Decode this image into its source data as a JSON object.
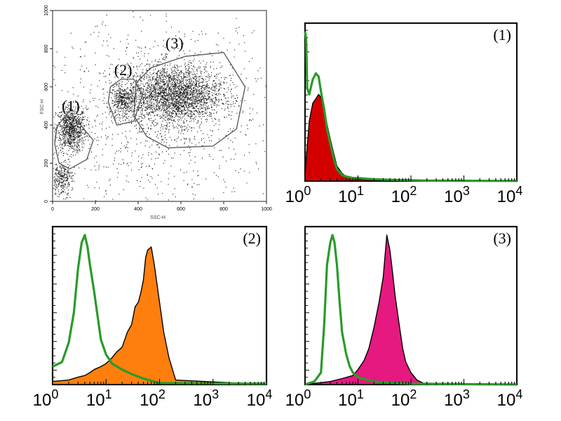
{
  "chart_data": [
    {
      "type": "scatter",
      "xlabel": "SSC-H",
      "ylabel": "FSC-H",
      "xlim": [
        0,
        1000
      ],
      "ylim": [
        0,
        1000
      ],
      "x_ticks": [
        "0",
        "200",
        "400",
        "600",
        "800",
        "1000"
      ],
      "y_ticks": [
        "0",
        "200",
        "400",
        "600",
        "800",
        "1000"
      ],
      "gates": [
        {
          "label": "(1)",
          "center": [
            85,
            370
          ],
          "polygon": [
            [
              10,
              300
            ],
            [
              20,
              390
            ],
            [
              60,
              450
            ],
            [
              110,
              430
            ],
            [
              190,
              320
            ],
            [
              160,
              220
            ],
            [
              80,
              170
            ],
            [
              30,
              200
            ]
          ]
        },
        {
          "label": "(2)",
          "center": [
            330,
            530
          ],
          "polygon": [
            [
              260,
              520
            ],
            [
              270,
              600
            ],
            [
              320,
              640
            ],
            [
              380,
              640
            ],
            [
              420,
              560
            ],
            [
              380,
              420
            ],
            [
              300,
              400
            ]
          ]
        },
        {
          "label": "(3)",
          "center": [
            570,
            560
          ],
          "polygon": [
            [
              380,
              450
            ],
            [
              390,
              620
            ],
            [
              460,
              700
            ],
            [
              620,
              760
            ],
            [
              800,
              780
            ],
            [
              900,
              600
            ],
            [
              860,
              380
            ],
            [
              750,
              290
            ],
            [
              540,
              280
            ],
            [
              440,
              340
            ]
          ]
        }
      ],
      "clusters": [
        {
          "cx": 85,
          "cy": 380,
          "sx": 35,
          "sy": 60,
          "n": 900
        },
        {
          "cx": 330,
          "cy": 530,
          "sx": 30,
          "sy": 35,
          "n": 350
        },
        {
          "cx": 570,
          "cy": 560,
          "sx": 110,
          "sy": 75,
          "n": 2600
        },
        {
          "cx": 40,
          "cy": 120,
          "sx": 25,
          "sy": 45,
          "n": 300
        },
        {
          "cx": 500,
          "cy": 450,
          "sx": 270,
          "sy": 250,
          "n": 1100
        }
      ]
    },
    {
      "type": "area",
      "label": "(1)",
      "xscale": "log",
      "xlim": [
        1,
        10000
      ],
      "x_ticks": [
        "10^0",
        "10^1",
        "10^2",
        "10^3",
        "10^4"
      ],
      "series": [
        {
          "color": "#d40000",
          "fill": true,
          "x": [
            1.0,
            1.2,
            1.4,
            1.6,
            1.8,
            2.0,
            2.3,
            2.6,
            3.0,
            3.5,
            4.0,
            5.0,
            6.0,
            8.0,
            10,
            15,
            20,
            30,
            50,
            100,
            10000
          ],
          "y": [
            5,
            40,
            52,
            55,
            58,
            56,
            48,
            38,
            28,
            18,
            10,
            5,
            3,
            2,
            1.2,
            1,
            0.8,
            0.5,
            0.3,
            0,
            0
          ]
        },
        {
          "color": "#2a9a2a",
          "fill": false,
          "x": [
            1.0,
            1.05,
            1.1,
            1.2,
            1.4,
            1.6,
            1.8,
            2.0,
            2.3,
            2.6,
            3.0,
            3.5,
            4.0,
            5.0,
            6.0,
            8.0,
            10,
            15,
            20,
            30,
            50,
            100,
            200,
            1000,
            10000
          ],
          "y": [
            100,
            95,
            62,
            58,
            68,
            72,
            70,
            60,
            48,
            35,
            25,
            15,
            8,
            4,
            3,
            2,
            2,
            1.5,
            1.2,
            1,
            0.8,
            0.5,
            0.3,
            0.2,
            0.1
          ]
        }
      ]
    },
    {
      "type": "area",
      "label": "(2)",
      "xscale": "log",
      "xlim": [
        1,
        10000
      ],
      "x_ticks": [
        "10^0",
        "10^1",
        "10^2",
        "10^3",
        "10^4"
      ],
      "series": [
        {
          "color": "#ff7f0e",
          "fill": true,
          "x": [
            1.0,
            2.0,
            3.0,
            4.0,
            5.0,
            6.0,
            8.0,
            10,
            13,
            16,
            20,
            25,
            30,
            35,
            40,
            45,
            50,
            55,
            60,
            70,
            80,
            100,
            120,
            150,
            200,
            10000
          ],
          "y": [
            2,
            3,
            5,
            6,
            8,
            10,
            12,
            14,
            18,
            22,
            25,
            35,
            40,
            52,
            55,
            62,
            70,
            85,
            90,
            92,
            80,
            55,
            35,
            18,
            3,
            0
          ]
        },
        {
          "color": "#2a9a2a",
          "fill": false,
          "x": [
            1.0,
            1.5,
            2.0,
            2.5,
            3.0,
            3.5,
            4.0,
            4.5,
            5.0,
            6.0,
            7.0,
            8.0,
            10,
            13,
            16,
            20,
            30,
            50,
            100,
            10000
          ],
          "y": [
            12,
            15,
            28,
            48,
            78,
            95,
            100,
            92,
            80,
            62,
            45,
            30,
            20,
            14,
            12,
            10,
            7,
            4,
            1,
            0.5
          ]
        }
      ]
    },
    {
      "type": "area",
      "label": "(3)",
      "xscale": "log",
      "xlim": [
        1,
        10000
      ],
      "x_ticks": [
        "10^0",
        "10^1",
        "10^2",
        "10^3",
        "10^4"
      ],
      "series": [
        {
          "color": "#e5197f",
          "fill": true,
          "x": [
            1.0,
            3.0,
            5.0,
            8.0,
            10,
            13,
            16,
            20,
            25,
            30,
            35,
            40,
            45,
            50,
            60,
            70,
            80,
            100,
            130,
            170,
            10000
          ],
          "y": [
            0,
            2,
            4,
            6,
            10,
            16,
            24,
            38,
            55,
            72,
            100,
            90,
            75,
            60,
            40,
            24,
            15,
            8,
            3,
            1,
            0
          ]
        },
        {
          "color": "#2a9a2a",
          "fill": false,
          "x": [
            1.0,
            1.5,
            2.0,
            2.3,
            2.6,
            3.0,
            3.3,
            3.6,
            4.0,
            4.5,
            5.0,
            6.0,
            7.0,
            8.0,
            10,
            12,
            15,
            20,
            30,
            50,
            100,
            10000
          ],
          "y": [
            0,
            2,
            8,
            40,
            80,
            95,
            100,
            95,
            80,
            55,
            35,
            20,
            12,
            8,
            5,
            4,
            3,
            2,
            1.5,
            1,
            0.5,
            0
          ]
        }
      ]
    }
  ]
}
